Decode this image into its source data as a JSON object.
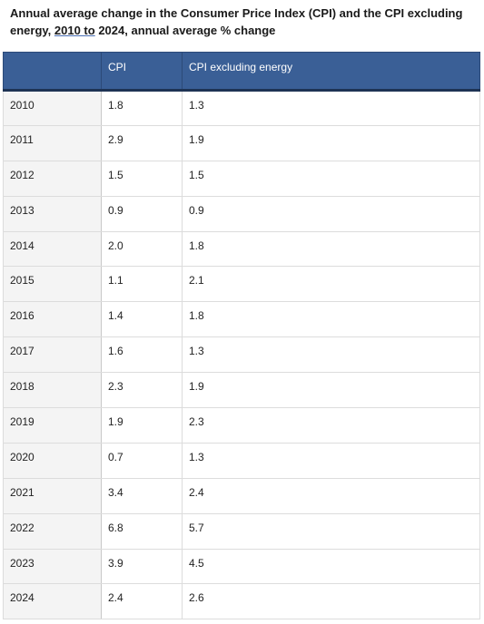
{
  "title": {
    "line1": "Annual average change in the Consumer Price Index (CPI) and the CPI excluding",
    "line2_prefix": "energy, ",
    "line2_underlined": "2010  to",
    "line2_suffix": " 2024, annual average % change"
  },
  "chart_data": {
    "type": "table",
    "title": "Annual average change in the Consumer Price Index (CPI) and the CPI excluding energy, 2010 to 2024, annual average % change",
    "columns": [
      "",
      "CPI",
      "CPI excluding energy"
    ],
    "rows": [
      {
        "year": "2010",
        "cpi": "1.8",
        "cpi_ex_energy": "1.3"
      },
      {
        "year": "2011",
        "cpi": "2.9",
        "cpi_ex_energy": "1.9"
      },
      {
        "year": "2012",
        "cpi": "1.5",
        "cpi_ex_energy": "1.5"
      },
      {
        "year": "2013",
        "cpi": "0.9",
        "cpi_ex_energy": "0.9"
      },
      {
        "year": "2014",
        "cpi": "2.0",
        "cpi_ex_energy": "1.8"
      },
      {
        "year": "2015",
        "cpi": "1.1",
        "cpi_ex_energy": "2.1"
      },
      {
        "year": "2016",
        "cpi": "1.4",
        "cpi_ex_energy": "1.8"
      },
      {
        "year": "2017",
        "cpi": "1.6",
        "cpi_ex_energy": "1.3"
      },
      {
        "year": "2018",
        "cpi": "2.3",
        "cpi_ex_energy": "1.9"
      },
      {
        "year": "2019",
        "cpi": "1.9",
        "cpi_ex_energy": "2.3"
      },
      {
        "year": "2020",
        "cpi": "0.7",
        "cpi_ex_energy": "1.3"
      },
      {
        "year": "2021",
        "cpi": "3.4",
        "cpi_ex_energy": "2.4"
      },
      {
        "year": "2022",
        "cpi": "6.8",
        "cpi_ex_energy": "5.7"
      },
      {
        "year": "2023",
        "cpi": "3.9",
        "cpi_ex_energy": "4.5"
      },
      {
        "year": "2024",
        "cpi": "2.4",
        "cpi_ex_energy": "2.6"
      }
    ]
  },
  "colors": {
    "header_bg": "#3a5f96",
    "header_text": "#ffffff",
    "year_column_bg": "#f4f4f4",
    "border": "#dcdcdc"
  }
}
